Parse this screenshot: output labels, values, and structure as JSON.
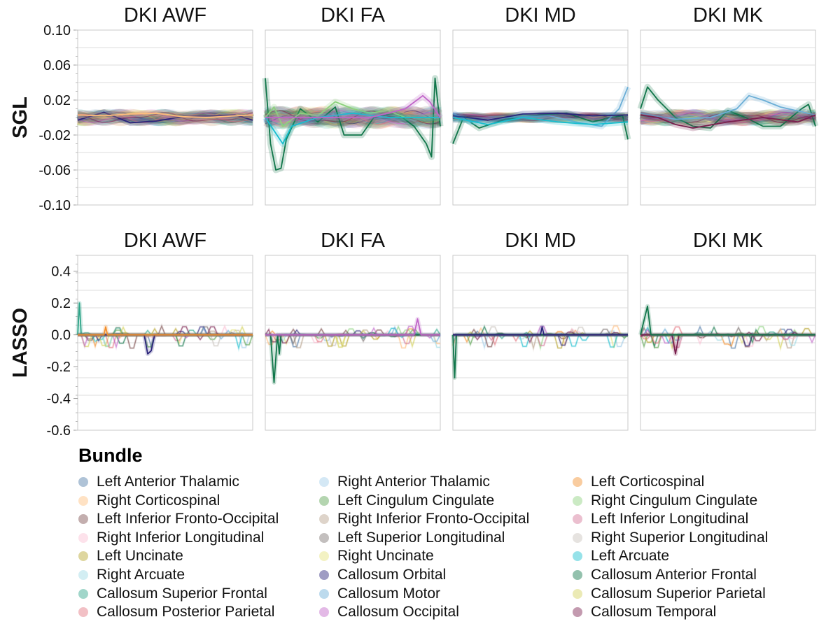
{
  "chart_data": [
    {
      "type": "line",
      "title": "DKI AWF",
      "ylabel": "SGL",
      "ylim": [
        -0.1,
        0.1
      ],
      "yticks": [
        "0.10",
        "0.06",
        "0.02",
        "-0.02",
        "-0.06",
        "-0.10"
      ],
      "ytick_values": [
        0.1,
        0.06,
        0.02,
        -0.02,
        -0.06,
        -0.1
      ],
      "x_range": [
        0,
        100
      ],
      "amplitude": 0.006,
      "spike_mode": false,
      "series": [
        {
          "name": "Callosum Orbital",
          "points": [
            [
              0,
              -0.003
            ],
            [
              15,
              0.006
            ],
            [
              30,
              -0.006
            ],
            [
              45,
              -0.004
            ],
            [
              60,
              0.001
            ],
            [
              75,
              0.002
            ],
            [
              90,
              0.003
            ],
            [
              100,
              -0.003
            ]
          ]
        },
        {
          "name": "Right Corticospinal",
          "points": [
            [
              0,
              0.003
            ],
            [
              15,
              0.002
            ],
            [
              30,
              0.004
            ],
            [
              45,
              0.005
            ],
            [
              60,
              0.001
            ],
            [
              75,
              0.0
            ],
            [
              90,
              0.002
            ],
            [
              100,
              0.003
            ]
          ]
        }
      ]
    },
    {
      "type": "line",
      "title": "DKI FA",
      "ylabel": "",
      "ylim": [
        -0.1,
        0.1
      ],
      "yticks": [],
      "x_range": [
        0,
        100
      ],
      "amplitude": 0.008,
      "spike_mode": false,
      "series": [
        {
          "name": "Callosum Anterior Frontal",
          "points": [
            [
              0,
              0.045
            ],
            [
              3,
              -0.03
            ],
            [
              6,
              -0.06
            ],
            [
              9,
              -0.058
            ],
            [
              12,
              -0.025
            ],
            [
              20,
              0.01
            ],
            [
              30,
              -0.005
            ],
            [
              40,
              0.012
            ],
            [
              45,
              -0.02
            ],
            [
              55,
              -0.02
            ],
            [
              62,
              0.0
            ],
            [
              75,
              0.005
            ],
            [
              85,
              -0.01
            ],
            [
              92,
              -0.03
            ],
            [
              95,
              -0.045
            ],
            [
              97,
              0.045
            ],
            [
              100,
              -0.01
            ]
          ]
        },
        {
          "name": "Right Cingulum Cingulate",
          "points": [
            [
              0,
              0.0
            ],
            [
              5,
              0.012
            ],
            [
              10,
              -0.01
            ],
            [
              20,
              0.005
            ],
            [
              30,
              0.002
            ],
            [
              40,
              0.018
            ],
            [
              50,
              0.01
            ],
            [
              60,
              0.005
            ],
            [
              70,
              0.008
            ],
            [
              80,
              0.0
            ],
            [
              90,
              0.0
            ],
            [
              100,
              0.0
            ]
          ]
        },
        {
          "name": "Left Arcuate",
          "points": [
            [
              0,
              0.0
            ],
            [
              10,
              -0.03
            ],
            [
              15,
              -0.01
            ],
            [
              30,
              0.0
            ],
            [
              50,
              0.005
            ],
            [
              70,
              0.0
            ],
            [
              90,
              0.0
            ],
            [
              100,
              0.0
            ]
          ]
        },
        {
          "name": "Callosum Occipital",
          "points": [
            [
              0,
              0.0
            ],
            [
              20,
              0.0
            ],
            [
              40,
              0.0
            ],
            [
              60,
              0.0
            ],
            [
              80,
              0.01
            ],
            [
              90,
              0.025
            ],
            [
              94,
              0.018
            ],
            [
              100,
              0.0
            ]
          ]
        }
      ]
    },
    {
      "type": "line",
      "title": "DKI MD",
      "ylabel": "",
      "ylim": [
        -0.1,
        0.1
      ],
      "yticks": [],
      "x_range": [
        0,
        100
      ],
      "amplitude": 0.004,
      "spike_mode": false,
      "series": [
        {
          "name": "Callosum Anterior Frontal",
          "points": [
            [
              0,
              -0.03
            ],
            [
              6,
              0.0
            ],
            [
              15,
              -0.012
            ],
            [
              30,
              -0.002
            ],
            [
              50,
              0.003
            ],
            [
              65,
              0.005
            ],
            [
              80,
              -0.005
            ],
            [
              90,
              0.0
            ],
            [
              97,
              0.002
            ],
            [
              100,
              -0.025
            ]
          ]
        },
        {
          "name": "Callosum Motor",
          "points": [
            [
              0,
              0.005
            ],
            [
              10,
              -0.005
            ],
            [
              30,
              0.0
            ],
            [
              55,
              0.002
            ],
            [
              70,
              -0.005
            ],
            [
              85,
              -0.01
            ],
            [
              95,
              0.01
            ],
            [
              100,
              0.035
            ]
          ]
        },
        {
          "name": "Callosum Orbital",
          "points": [
            [
              0,
              0.002
            ],
            [
              20,
              -0.003
            ],
            [
              40,
              0.004
            ],
            [
              60,
              0.005
            ],
            [
              80,
              0.002
            ],
            [
              100,
              0.003
            ]
          ]
        },
        {
          "name": "Left Arcuate",
          "points": [
            [
              0,
              0.0
            ],
            [
              20,
              -0.008
            ],
            [
              40,
              0.0
            ],
            [
              60,
              -0.005
            ],
            [
              80,
              -0.008
            ],
            [
              100,
              -0.005
            ]
          ]
        }
      ]
    },
    {
      "type": "line",
      "title": "DKI MK",
      "ylabel": "",
      "ylim": [
        -0.1,
        0.1
      ],
      "yticks": [],
      "x_range": [
        0,
        100
      ],
      "amplitude": 0.006,
      "spike_mode": false,
      "series": [
        {
          "name": "Callosum Anterior Frontal",
          "points": [
            [
              0,
              0.01
            ],
            [
              4,
              0.035
            ],
            [
              10,
              0.02
            ],
            [
              20,
              0.0
            ],
            [
              30,
              -0.01
            ],
            [
              40,
              -0.012
            ],
            [
              50,
              0.008
            ],
            [
              60,
              0.0
            ],
            [
              70,
              -0.01
            ],
            [
              80,
              -0.01
            ],
            [
              92,
              0.01
            ],
            [
              96,
              0.015
            ],
            [
              100,
              -0.01
            ]
          ]
        },
        {
          "name": "Callosum Motor",
          "points": [
            [
              0,
              0.005
            ],
            [
              20,
              -0.002
            ],
            [
              40,
              0.0
            ],
            [
              55,
              0.01
            ],
            [
              62,
              0.025
            ],
            [
              70,
              0.02
            ],
            [
              80,
              0.012
            ],
            [
              100,
              0.003
            ]
          ]
        },
        {
          "name": "Callosum Temporal",
          "points": [
            [
              0,
              0.003
            ],
            [
              10,
              0.0
            ],
            [
              20,
              -0.008
            ],
            [
              30,
              -0.012
            ],
            [
              50,
              -0.005
            ],
            [
              70,
              0.0
            ],
            [
              90,
              -0.005
            ],
            [
              100,
              0.003
            ]
          ]
        }
      ]
    },
    {
      "type": "line",
      "title": "DKI AWF",
      "ylabel": "LASSO",
      "ylim": [
        -0.6,
        0.5
      ],
      "yticks": [
        "0.4",
        "0.2",
        "0.0",
        "-0.2",
        "-0.4",
        "-0.6"
      ],
      "ytick_values": [
        0.4,
        0.2,
        0.0,
        -0.2,
        -0.4,
        -0.6
      ],
      "x_range": [
        0,
        100
      ],
      "amplitude": 0.0,
      "spike_mode": true,
      "series": [
        {
          "name": "Callosum Superior Frontal",
          "points": [
            [
              0,
              0.0
            ],
            [
              1,
              0.2
            ],
            [
              2,
              0.0
            ],
            [
              100,
              0.0
            ]
          ]
        },
        {
          "name": "Callosum Orbital",
          "points": [
            [
              0,
              0.0
            ],
            [
              38,
              0.0
            ],
            [
              40,
              -0.12
            ],
            [
              42,
              -0.1
            ],
            [
              44,
              0.0
            ],
            [
              100,
              0.0
            ]
          ]
        },
        {
          "name": "Left Corticospinal",
          "points": [
            [
              0,
              0.0
            ],
            [
              15,
              0.0
            ],
            [
              16,
              0.05
            ],
            [
              17,
              0.0
            ],
            [
              100,
              0.0
            ]
          ]
        }
      ]
    },
    {
      "type": "line",
      "title": "DKI FA",
      "ylabel": "",
      "ylim": [
        -0.6,
        0.5
      ],
      "yticks": [],
      "x_range": [
        0,
        100
      ],
      "amplitude": 0.0,
      "spike_mode": true,
      "series": [
        {
          "name": "Callosum Anterior Frontal",
          "points": [
            [
              0,
              0.0
            ],
            [
              3,
              0.0
            ],
            [
              5,
              -0.3
            ],
            [
              7,
              0.0
            ],
            [
              8,
              -0.12
            ],
            [
              9,
              0.0
            ],
            [
              100,
              0.0
            ]
          ]
        },
        {
          "name": "Callosum Occipital",
          "points": [
            [
              0,
              0.0
            ],
            [
              85,
              0.0
            ],
            [
              87,
              0.1
            ],
            [
              89,
              0.0
            ],
            [
              100,
              0.0
            ]
          ]
        }
      ]
    },
    {
      "type": "line",
      "title": "DKI MD",
      "ylabel": "",
      "ylim": [
        -0.6,
        0.5
      ],
      "yticks": [],
      "x_range": [
        0,
        100
      ],
      "amplitude": 0.0,
      "spike_mode": true,
      "series": [
        {
          "name": "Callosum Anterior Frontal",
          "points": [
            [
              0,
              0.0
            ],
            [
              1,
              -0.27
            ],
            [
              2,
              0.0
            ],
            [
              100,
              0.0
            ]
          ]
        },
        {
          "name": "Callosum Orbital",
          "points": [
            [
              0,
              0.0
            ],
            [
              50,
              0.0
            ],
            [
              51,
              0.05
            ],
            [
              52,
              0.0
            ],
            [
              100,
              0.0
            ]
          ]
        }
      ]
    },
    {
      "type": "line",
      "title": "DKI MK",
      "ylabel": "",
      "ylim": [
        -0.6,
        0.5
      ],
      "yticks": [],
      "x_range": [
        0,
        100
      ],
      "amplitude": 0.0,
      "spike_mode": true,
      "series": [
        {
          "name": "Callosum Temporal",
          "points": [
            [
              0,
              0.0
            ],
            [
              18,
              0.0
            ],
            [
              20,
              -0.12
            ],
            [
              22,
              0.0
            ],
            [
              100,
              0.0
            ]
          ]
        },
        {
          "name": "Callosum Anterior Frontal",
          "points": [
            [
              0,
              0.0
            ],
            [
              4,
              0.18
            ],
            [
              6,
              0.0
            ],
            [
              100,
              0.0
            ]
          ]
        }
      ]
    }
  ],
  "legend": {
    "title": "Bundle",
    "items": [
      {
        "label": "Left Anterior Thalamic",
        "color": "#4e79a7"
      },
      {
        "label": "Right Anterior Thalamic",
        "color": "#a0cbe8"
      },
      {
        "label": "Left Corticospinal",
        "color": "#f28e2b"
      },
      {
        "label": "Right Corticospinal",
        "color": "#ffbe7d"
      },
      {
        "label": "Left Cingulum Cingulate",
        "color": "#59a14f"
      },
      {
        "label": "Right Cingulum Cingulate",
        "color": "#8cd17d"
      },
      {
        "label": "Left Inferior Fronto-Occipital",
        "color": "#7b4b4b"
      },
      {
        "label": "Right Inferior Fronto-Occipital",
        "color": "#b6a08a"
      },
      {
        "label": "Left Inferior Longitudinal",
        "color": "#d37295"
      },
      {
        "label": "Right Inferior Longitudinal",
        "color": "#fabfd2"
      },
      {
        "label": "Left Superior Longitudinal",
        "color": "#79706e"
      },
      {
        "label": "Right Superior Longitudinal",
        "color": "#c8c1ba"
      },
      {
        "label": "Left Uncinate",
        "color": "#b5a32a"
      },
      {
        "label": "Right Uncinate",
        "color": "#e5e27a"
      },
      {
        "label": "Left Arcuate",
        "color": "#17becf"
      },
      {
        "label": "Right Arcuate",
        "color": "#9edae5"
      },
      {
        "label": "Callosum Orbital",
        "color": "#2a237a"
      },
      {
        "label": "Callosum Anterior Frontal",
        "color": "#10764a"
      },
      {
        "label": "Callosum Superior Frontal",
        "color": "#2fa58a"
      },
      {
        "label": "Callosum Motor",
        "color": "#6baed6"
      },
      {
        "label": "Callosum Superior Parietal",
        "color": "#d3d15a"
      },
      {
        "label": "Callosum Posterior Parietal",
        "color": "#e3747f"
      },
      {
        "label": "Callosum Occipital",
        "color": "#c064c8"
      },
      {
        "label": "Callosum Temporal",
        "color": "#7a1f4e"
      }
    ]
  }
}
